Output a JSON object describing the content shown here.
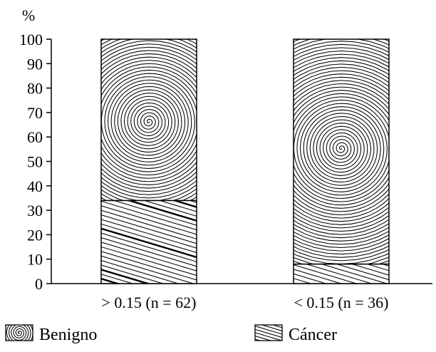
{
  "chart_data": {
    "type": "bar",
    "stacked": true,
    "percent": true,
    "ylabel": "%",
    "ylim": [
      0,
      100
    ],
    "yticks": [
      "0",
      "10",
      "20",
      "30",
      "40",
      "50",
      "60",
      "70",
      "80",
      "90",
      "100"
    ],
    "categories": [
      "> 0.15 (n = 62)",
      "< 0.15 (n = 36)"
    ],
    "series": [
      {
        "name": "Cáncer",
        "values": [
          34,
          8
        ],
        "pattern": "diagonal-hatch"
      },
      {
        "name": "Benigno",
        "values": [
          66,
          92
        ],
        "pattern": "concentric-spiral"
      }
    ],
    "legend": [
      "Benigno",
      "Cáncer"
    ],
    "legend_position": "bottom",
    "grid": false,
    "colors": {
      "ink": "#000000",
      "background": "#ffffff"
    }
  }
}
